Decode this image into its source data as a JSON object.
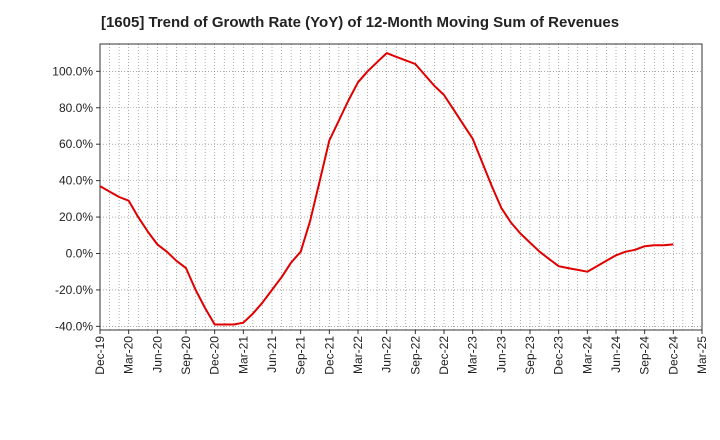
{
  "chart_data": {
    "type": "line",
    "title": "[1605]  Trend of Growth Rate (YoY) of 12-Month Moving Sum of Revenues",
    "xlabel": "",
    "ylabel": "",
    "x_tick_labels": [
      "Dec-19",
      "Mar-20",
      "Jun-20",
      "Sep-20",
      "Dec-20",
      "Mar-21",
      "Jun-21",
      "Sep-21",
      "Dec-21",
      "Mar-22",
      "Jun-22",
      "Sep-22",
      "Dec-22",
      "Mar-23",
      "Jun-23",
      "Sep-23",
      "Dec-23",
      "Mar-24",
      "Jun-24",
      "Sep-24",
      "Dec-24",
      "Mar-25"
    ],
    "y_tick_labels": [
      "100.0%",
      "80.0%",
      "60.0%",
      "40.0%",
      "20.0%",
      "0.0%",
      "-20.0%",
      "-40.0%"
    ],
    "y_ticks": [
      100,
      80,
      60,
      40,
      20,
      0,
      -20,
      -40
    ],
    "ylim": [
      -42,
      115
    ],
    "grid": true,
    "line_color": "#e00000",
    "series": [
      {
        "x": [
          "Dec-19",
          "Jan-20",
          "Feb-20",
          "Mar-20",
          "Apr-20",
          "May-20",
          "Jun-20",
          "Jul-20",
          "Aug-20",
          "Sep-20",
          "Oct-20",
          "Nov-20",
          "Dec-20",
          "Jan-21",
          "Feb-21",
          "Mar-21",
          "Apr-21",
          "May-21",
          "Jun-21",
          "Jul-21",
          "Aug-21",
          "Sep-21",
          "Oct-21",
          "Nov-21",
          "Dec-21",
          "Jan-22",
          "Feb-22",
          "Mar-22",
          "Apr-22",
          "May-22",
          "Jun-22",
          "Jul-22",
          "Aug-22",
          "Sep-22",
          "Oct-22",
          "Nov-22",
          "Dec-22",
          "Jan-23",
          "Feb-23",
          "Mar-23",
          "Apr-23",
          "May-23",
          "Jun-23",
          "Jul-23",
          "Aug-23",
          "Sep-23",
          "Oct-23",
          "Nov-23",
          "Dec-23",
          "Jan-24",
          "Feb-24",
          "Mar-24",
          "Apr-24",
          "May-24",
          "Jun-24",
          "Jul-24",
          "Aug-24",
          "Sep-24",
          "Oct-24",
          "Nov-24",
          "Dec-24"
        ],
        "values": [
          37,
          34,
          31,
          29,
          20,
          12,
          5,
          1,
          -4,
          -8,
          -20,
          -30,
          -39,
          -39,
          -39,
          -38,
          -33,
          -27,
          -20,
          -13,
          -5,
          1,
          18,
          40,
          62,
          73,
          84,
          94,
          100,
          105,
          110,
          108,
          106,
          104,
          98,
          92,
          87,
          79,
          71,
          63,
          50,
          37,
          25,
          17,
          11,
          6,
          1,
          -3,
          -7,
          -8,
          -9,
          -10,
          -7,
          -4,
          -1,
          1,
          2,
          4,
          4.5,
          4.5,
          5
        ]
      }
    ]
  }
}
